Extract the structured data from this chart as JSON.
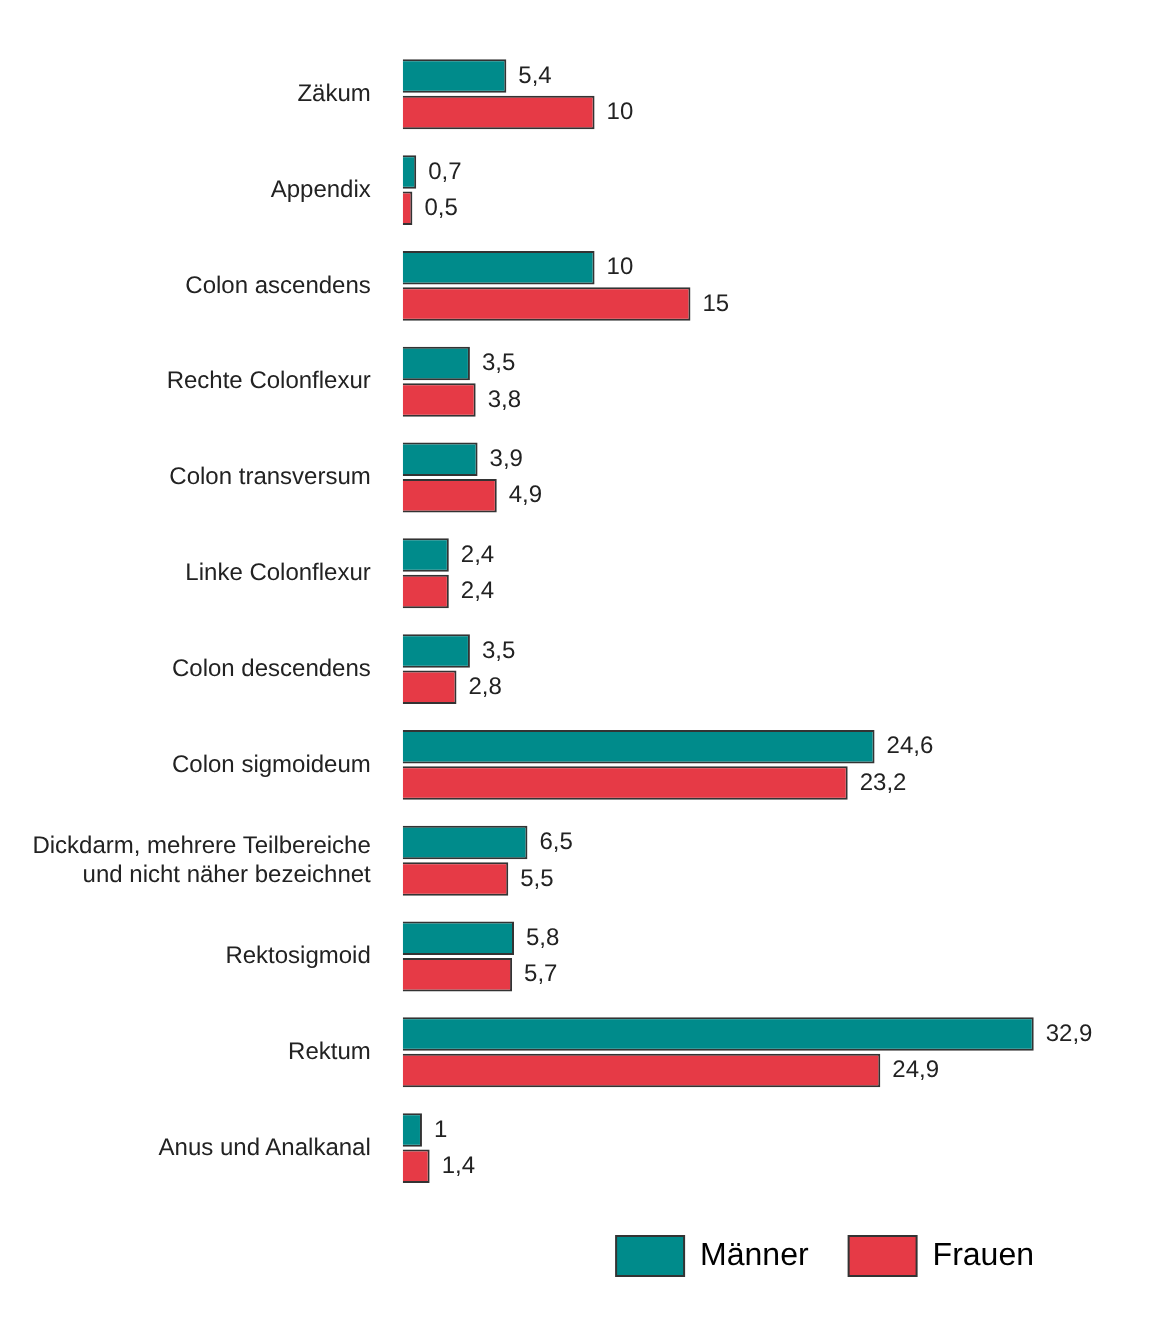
{
  "chart_data": {
    "type": "bar",
    "orientation": "horizontal",
    "legend": "bottom right",
    "categories": [
      "Zäkum",
      "Appendix",
      "Colon ascendens",
      "Rechte Colonflexur",
      "Colon transversum",
      "Linke Colonflexur",
      "Colon descendens",
      "Colon sigmoideum",
      "Dickdarm, mehrere Teilbereiche\nund nicht näher bezeichnet",
      "Rektosigmoid",
      "Rektum",
      "Anus und Analkanal"
    ],
    "series": [
      {
        "name": "Männer",
        "color": "#008b8b",
        "values": [
          5.4,
          0.7,
          10,
          3.5,
          3.9,
          2.4,
          3.5,
          24.6,
          6.5,
          5.8,
          32.9,
          1
        ],
        "value_labels": [
          "5,4",
          "0,7",
          "10",
          "3,5",
          "3,9",
          "2,4",
          "3,5",
          "24,6",
          "6,5",
          "5,8",
          "32,9",
          "1"
        ]
      },
      {
        "name": "Frauen",
        "color": "#e63a46",
        "values": [
          10,
          0.5,
          15,
          3.8,
          4.9,
          2.4,
          2.8,
          23.2,
          5.5,
          5.7,
          24.9,
          1.4
        ],
        "value_labels": [
          "10",
          "0,5",
          "15",
          "3,8",
          "4,9",
          "2,4",
          "2,8",
          "23,2",
          "5,5",
          "5,7",
          "24,9",
          "1,4"
        ]
      }
    ]
  }
}
